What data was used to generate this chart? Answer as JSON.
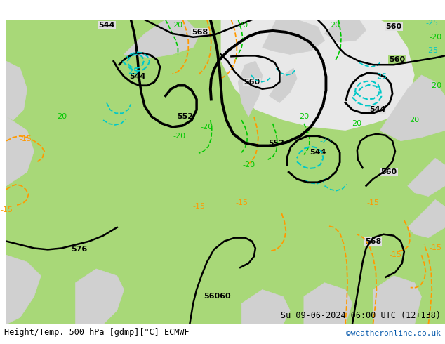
{
  "title_left": "Height/Temp. 500 hPa [gdmp][°C] ECMWF",
  "title_right": "Su 09-06-2024 06:00 UTC (12+138)",
  "copyright": "©weatheronline.co.uk",
  "bg_green": "#a8d878",
  "bg_gray": "#d0d0d0",
  "bg_white": "#f0f0f0",
  "contour_color": "#000000",
  "temp_neg_color": "#00c8c8",
  "temp_pos_color": "#00c800",
  "orange_color": "#ff9900",
  "label_fontsize": 9,
  "footer_fontsize": 9
}
